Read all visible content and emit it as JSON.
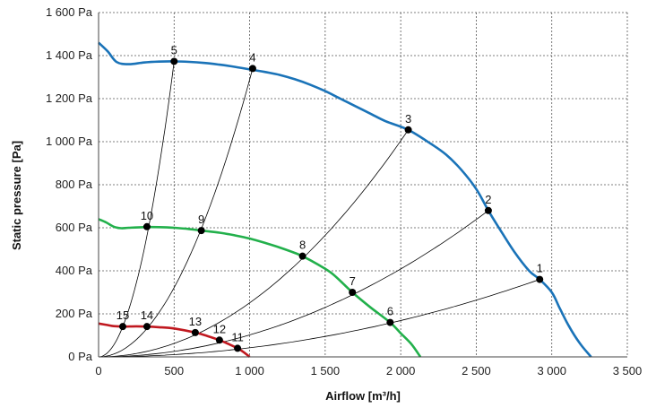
{
  "chart_data": {
    "type": "line",
    "xlabel": "Airflow [m³/h]",
    "ylabel": "Static pressure [Pa]",
    "xlim": [
      0,
      3500
    ],
    "ylim": [
      0,
      1600
    ],
    "x_ticks": [
      0,
      500,
      1000,
      1500,
      2000,
      2500,
      3000,
      3500
    ],
    "x_tick_labels": [
      "0",
      "500",
      "1 000",
      "1 500",
      "2 000",
      "2 500",
      "3 000",
      "3 500"
    ],
    "y_ticks": [
      0,
      200,
      400,
      600,
      800,
      1000,
      1200,
      1400,
      1600
    ],
    "y_tick_labels": [
      "0 Pa",
      "200 Pa",
      "400 Pa",
      "600 Pa",
      "800 Pa",
      "1 000 Pa",
      "1 200 Pa",
      "1 400 Pa",
      "1 600 Pa"
    ],
    "grid": true,
    "grid_style": "dotted",
    "colors": {
      "high": "#1a73b8",
      "medium": "#22b04b",
      "low": "#c0181f",
      "system": "#000000"
    },
    "fan_curves": [
      {
        "id": "high",
        "points": [
          [
            0,
            1460
          ],
          [
            60,
            1420
          ],
          [
            120,
            1370
          ],
          [
            200,
            1360
          ],
          [
            300,
            1368
          ],
          [
            400,
            1372
          ],
          [
            500,
            1373
          ],
          [
            600,
            1371
          ],
          [
            700,
            1366
          ],
          [
            800,
            1358
          ],
          [
            900,
            1348
          ],
          [
            1000,
            1336
          ],
          [
            1100,
            1324
          ],
          [
            1200,
            1310
          ],
          [
            1300,
            1290
          ],
          [
            1400,
            1265
          ],
          [
            1500,
            1235
          ],
          [
            1600,
            1200
          ],
          [
            1700,
            1165
          ],
          [
            1800,
            1130
          ],
          [
            1900,
            1095
          ],
          [
            2050,
            1055
          ],
          [
            2200,
            990
          ],
          [
            2300,
            940
          ],
          [
            2400,
            870
          ],
          [
            2500,
            780
          ],
          [
            2580,
            680
          ],
          [
            2650,
            600
          ],
          [
            2750,
            490
          ],
          [
            2850,
            400
          ],
          [
            2920,
            360
          ],
          [
            3000,
            300
          ],
          [
            3050,
            230
          ],
          [
            3100,
            160
          ],
          [
            3150,
            100
          ],
          [
            3200,
            50
          ],
          [
            3260,
            0
          ]
        ]
      },
      {
        "id": "medium",
        "points": [
          [
            0,
            640
          ],
          [
            50,
            625
          ],
          [
            100,
            605
          ],
          [
            150,
            598
          ],
          [
            200,
            600
          ],
          [
            300,
            603
          ],
          [
            400,
            603
          ],
          [
            500,
            600
          ],
          [
            600,
            594
          ],
          [
            680,
            587
          ],
          [
            800,
            577
          ],
          [
            900,
            565
          ],
          [
            1000,
            550
          ],
          [
            1100,
            530
          ],
          [
            1200,
            508
          ],
          [
            1300,
            483
          ],
          [
            1350,
            468
          ],
          [
            1450,
            430
          ],
          [
            1550,
            385
          ],
          [
            1680,
            300
          ],
          [
            1800,
            230
          ],
          [
            1930,
            160
          ],
          [
            2000,
            110
          ],
          [
            2070,
            60
          ],
          [
            2130,
            0
          ]
        ]
      },
      {
        "id": "low",
        "points": [
          [
            0,
            155
          ],
          [
            60,
            148
          ],
          [
            100,
            143
          ],
          [
            160,
            141
          ],
          [
            250,
            142
          ],
          [
            320,
            141
          ],
          [
            400,
            138
          ],
          [
            500,
            132
          ],
          [
            640,
            113
          ],
          [
            720,
            97
          ],
          [
            800,
            78
          ],
          [
            860,
            60
          ],
          [
            920,
            40
          ],
          [
            960,
            22
          ],
          [
            1000,
            0
          ]
        ]
      }
    ],
    "system_curves": [
      [
        [
          1,
          2
        ],
        [
          6,
          1
        ]
      ],
      [
        [
          2,
          2
        ],
        [
          7,
          1
        ]
      ],
      [
        [
          3,
          2
        ],
        [
          8,
          1
        ]
      ],
      [
        [
          4,
          2
        ],
        [
          9,
          1
        ]
      ],
      [
        [
          5,
          2
        ],
        [
          10,
          1
        ]
      ]
    ],
    "operating_points": [
      {
        "label": "1",
        "x": 2920,
        "y": 360
      },
      {
        "label": "2",
        "x": 2580,
        "y": 680
      },
      {
        "label": "3",
        "x": 2050,
        "y": 1055
      },
      {
        "label": "4",
        "x": 1020,
        "y": 1340
      },
      {
        "label": "5",
        "x": 500,
        "y": 1373
      },
      {
        "label": "6",
        "x": 1930,
        "y": 160
      },
      {
        "label": "7",
        "x": 1680,
        "y": 300
      },
      {
        "label": "8",
        "x": 1350,
        "y": 468
      },
      {
        "label": "9",
        "x": 680,
        "y": 587
      },
      {
        "label": "10",
        "x": 320,
        "y": 605
      },
      {
        "label": "11",
        "x": 920,
        "y": 40
      },
      {
        "label": "12",
        "x": 800,
        "y": 78
      },
      {
        "label": "13",
        "x": 640,
        "y": 113
      },
      {
        "label": "14",
        "x": 320,
        "y": 141
      },
      {
        "label": "15",
        "x": 160,
        "y": 141
      }
    ]
  }
}
